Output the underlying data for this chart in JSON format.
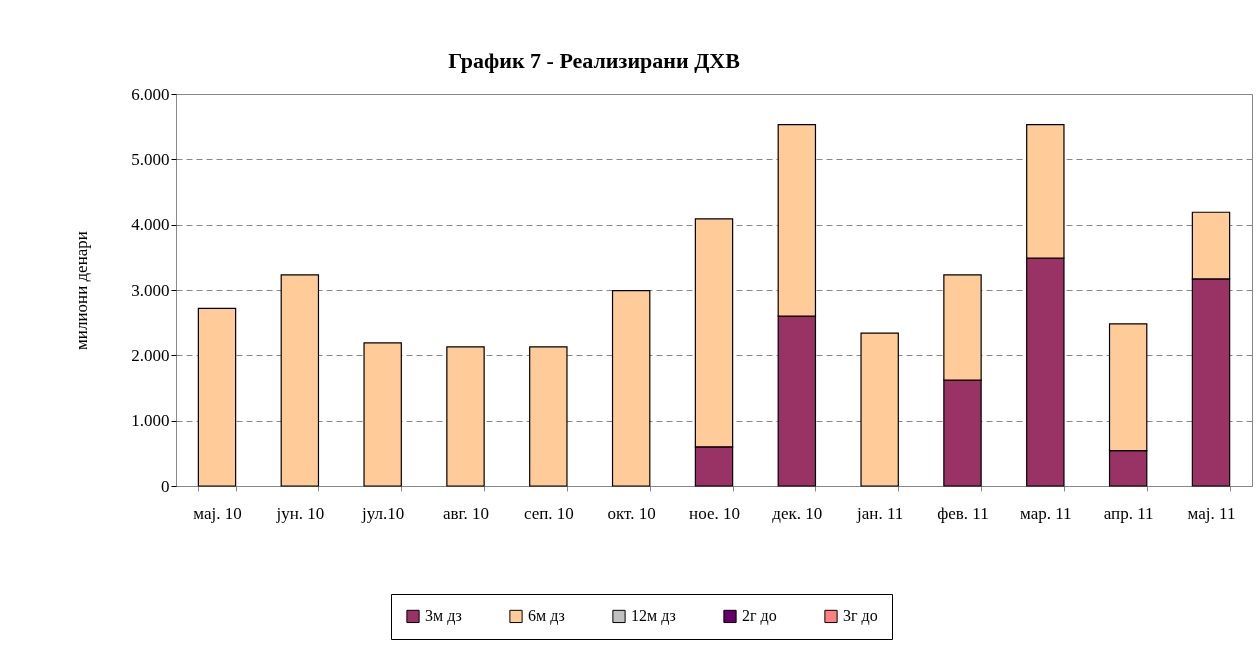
{
  "chart_data": {
    "type": "bar",
    "title": "График 7 - Реализирани ДХВ",
    "ylabel": "милиони денари",
    "categories": [
      "мај. 10",
      "јун. 10",
      "јул.10",
      "авг. 10",
      "сеп. 10",
      "окт. 10",
      "ное. 10",
      "дек. 10",
      "јан. 11",
      "фев. 11",
      "мар. 11",
      "апр. 11",
      "мај. 11"
    ],
    "stacked": true,
    "series": [
      {
        "name": "3м дз",
        "color": "#993366",
        "values": [
          null,
          null,
          null,
          null,
          null,
          null,
          600,
          2600,
          null,
          1620,
          3490,
          540,
          3170
        ]
      },
      {
        "name": "6м дз",
        "color": "#ffcc99",
        "values": [
          2720,
          3230,
          2190,
          2130,
          2130,
          2990,
          3490,
          2930,
          2340,
          1610,
          2040,
          1940,
          1020
        ]
      },
      {
        "name": "12м дз",
        "color": "#c0c0c0",
        "values": [
          null,
          null,
          null,
          null,
          null,
          null,
          null,
          null,
          null,
          null,
          null,
          null,
          null
        ]
      },
      {
        "name": "2г до",
        "color": "#660066",
        "values": [
          null,
          null,
          null,
          null,
          null,
          null,
          null,
          null,
          null,
          null,
          null,
          null,
          null
        ]
      },
      {
        "name": "3г до",
        "color": "#ff8080",
        "values": [
          null,
          null,
          null,
          null,
          null,
          null,
          null,
          null,
          null,
          null,
          null,
          null,
          null
        ]
      }
    ],
    "ylim": [
      0,
      6000
    ],
    "yticks": [
      0,
      {
        "value": 1000,
        "label": "1.000"
      },
      {
        "value": 2000,
        "label": "2.000"
      },
      {
        "value": 3000,
        "label": "3.000"
      },
      {
        "value": 4000,
        "label": "4.000"
      },
      {
        "value": 5000,
        "label": "5.000"
      },
      {
        "value": 6000,
        "label": "6.000"
      }
    ],
    "grid": "y",
    "legend": "bottom"
  }
}
